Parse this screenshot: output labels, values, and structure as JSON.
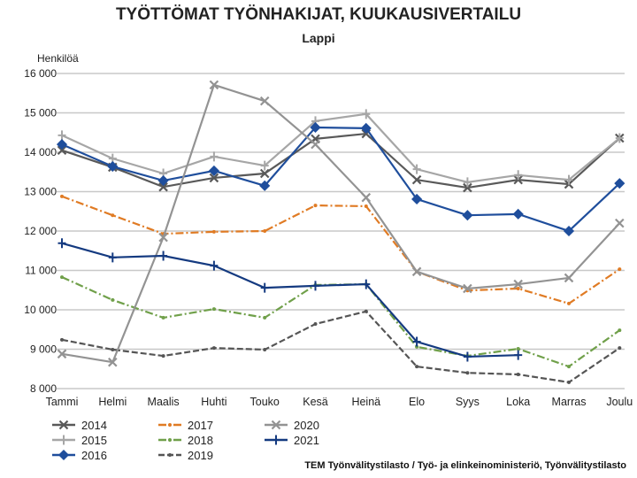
{
  "chart_data": {
    "type": "line",
    "title": "TYÖTTÖMAT TYÖNHAKIJAT, KUUKAUSIVERTAILU",
    "subtitle": "Lappi",
    "ylabel": "Henkilöä",
    "xlabel": "",
    "ylim": [
      8000,
      16000
    ],
    "yticks": [
      8000,
      9000,
      10000,
      11000,
      12000,
      13000,
      14000,
      15000,
      16000
    ],
    "ytick_labels": [
      "8 000",
      "9 000",
      "10 000",
      "11 000",
      "12 000",
      "13 000",
      "14 000",
      "15 000",
      "16 000"
    ],
    "grid": true,
    "legend_position": "bottom-left",
    "categories": [
      "Tammi",
      "Helmi",
      "Maalis",
      "Huhti",
      "Touko",
      "Kesä",
      "Heinä",
      "Elo",
      "Syys",
      "Loka",
      "Marras",
      "Joulu"
    ],
    "series": [
      {
        "name": "2014",
        "color": "#595959",
        "marker": "x",
        "dash": "solid",
        "values": [
          14050,
          13620,
          13120,
          13350,
          13460,
          14340,
          14470,
          13300,
          13100,
          13300,
          13190,
          14360
        ]
      },
      {
        "name": "2015",
        "color": "#a6a6a6",
        "marker": "plus",
        "dash": "solid",
        "values": [
          14430,
          13840,
          13460,
          13890,
          13660,
          14790,
          14970,
          13570,
          13240,
          13420,
          13300,
          14360
        ]
      },
      {
        "name": "2016",
        "color": "#1f4e9c",
        "marker": "diamond",
        "dash": "solid",
        "values": [
          14200,
          13640,
          13280,
          13530,
          13150,
          14630,
          14610,
          12810,
          12400,
          12430,
          12000,
          13210
        ]
      },
      {
        "name": "2017",
        "color": "#e07b24",
        "marker": "dot",
        "dash": "dashdot",
        "values": [
          12880,
          12400,
          11930,
          11980,
          12000,
          12650,
          12630,
          10970,
          10490,
          10540,
          10160,
          11030
        ]
      },
      {
        "name": "2018",
        "color": "#70a04a",
        "marker": "dot",
        "dash": "dashdot",
        "values": [
          10830,
          10250,
          9800,
          10020,
          9800,
          10630,
          10650,
          9060,
          8830,
          9010,
          8560,
          9480
        ]
      },
      {
        "name": "2019",
        "color": "#555555",
        "marker": "dot",
        "dash": "dash",
        "values": [
          9240,
          8990,
          8830,
          9030,
          8990,
          9640,
          9960,
          8560,
          8400,
          8360,
          8160,
          9030
        ]
      },
      {
        "name": "2020",
        "color": "#939393",
        "marker": "x",
        "dash": "solid",
        "values": [
          8880,
          8670,
          11840,
          15710,
          15300,
          14200,
          12850,
          10970,
          10540,
          10650,
          10810,
          12200
        ]
      },
      {
        "name": "2021",
        "color": "#143a80",
        "marker": "plus",
        "dash": "solid",
        "values": [
          11690,
          11330,
          11370,
          11120,
          10560,
          10610,
          10650,
          9190,
          8810,
          8850,
          null,
          null
        ]
      }
    ]
  },
  "source": "TEM Työnvälitystilasto / Työ- ja elinkeinoministeriö, Työnvälitystilasto"
}
